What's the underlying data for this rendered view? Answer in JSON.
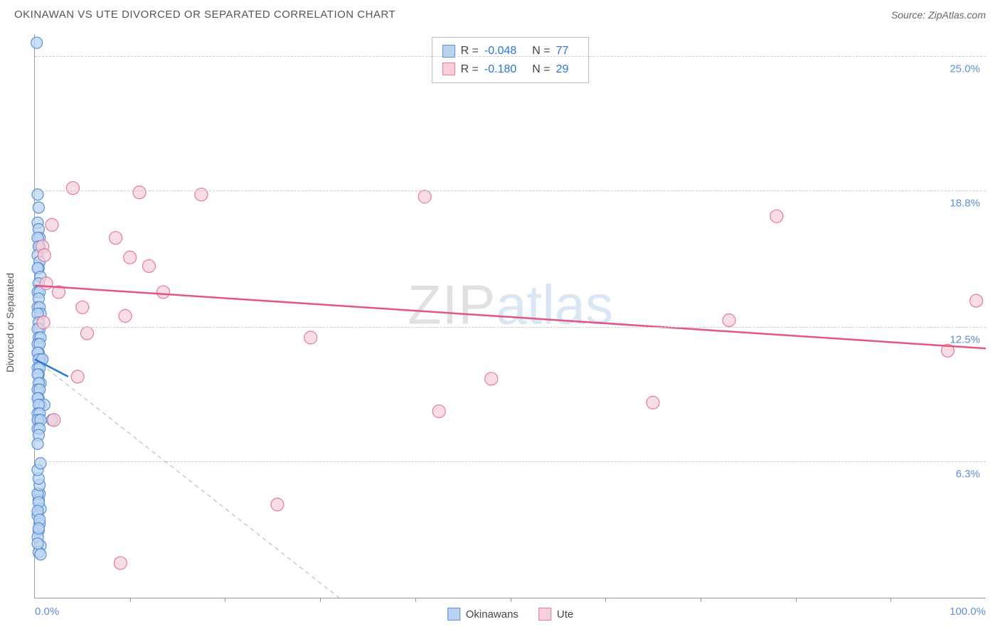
{
  "title": "OKINAWAN VS UTE DIVORCED OR SEPARATED CORRELATION CHART",
  "source": "Source: ZipAtlas.com",
  "ylabel": "Divorced or Separated",
  "watermark": {
    "part1": "ZIP",
    "part2": "atlas"
  },
  "chart": {
    "type": "scatter",
    "xmin": 0,
    "xmax": 100,
    "ymin": 0,
    "ymax": 26,
    "background_color": "#ffffff",
    "grid_color": "#cccccc",
    "grid_dash": "4,4",
    "yticks": [
      {
        "v": 6.3,
        "label": "6.3%"
      },
      {
        "v": 12.5,
        "label": "12.5%"
      },
      {
        "v": 18.8,
        "label": "18.8%"
      },
      {
        "v": 25.0,
        "label": "25.0%"
      }
    ],
    "xticks_minor": [
      10,
      20,
      30,
      40,
      50,
      60,
      70,
      80,
      90
    ],
    "xlabels": [
      {
        "v": 0,
        "label": "0.0%",
        "align": "left"
      },
      {
        "v": 100,
        "label": "100.0%",
        "align": "right"
      }
    ],
    "series": [
      {
        "name": "Okinawans",
        "fill": "#b9d4f1",
        "stroke": "#5b8fd6",
        "marker_radius": 8,
        "marker_opacity": 0.75,
        "R": "-0.048",
        "N": "77",
        "regression": {
          "x1": 0,
          "y1": 11.0,
          "x2": 3.5,
          "y2": 10.2,
          "width": 2.5,
          "color": "#2b74d8"
        },
        "guideline": {
          "x1": 0,
          "y1": 11.0,
          "x2": 32,
          "y2": 0,
          "dash": "6,5",
          "width": 1,
          "color": "#9ab8de"
        },
        "points": [
          [
            0.2,
            25.6
          ],
          [
            0.3,
            18.6
          ],
          [
            0.4,
            18.0
          ],
          [
            0.3,
            17.3
          ],
          [
            0.4,
            17.0
          ],
          [
            0.5,
            16.6
          ],
          [
            0.3,
            16.6
          ],
          [
            0.5,
            16.2
          ],
          [
            0.4,
            16.2
          ],
          [
            0.3,
            15.8
          ],
          [
            0.5,
            15.5
          ],
          [
            0.4,
            15.2
          ],
          [
            0.3,
            15.2
          ],
          [
            0.6,
            14.8
          ],
          [
            0.4,
            14.5
          ],
          [
            0.3,
            14.1
          ],
          [
            0.5,
            14.1
          ],
          [
            0.4,
            13.8
          ],
          [
            0.3,
            13.4
          ],
          [
            0.5,
            13.4
          ],
          [
            0.6,
            13.1
          ],
          [
            0.3,
            13.1
          ],
          [
            0.4,
            12.7
          ],
          [
            0.5,
            12.4
          ],
          [
            0.3,
            12.4
          ],
          [
            0.4,
            12.0
          ],
          [
            0.6,
            12.0
          ],
          [
            0.3,
            11.7
          ],
          [
            0.5,
            11.7
          ],
          [
            0.4,
            11.3
          ],
          [
            0.3,
            11.3
          ],
          [
            0.6,
            11.0
          ],
          [
            0.4,
            11.0
          ],
          [
            0.8,
            11.0
          ],
          [
            0.3,
            10.6
          ],
          [
            0.5,
            10.6
          ],
          [
            0.4,
            10.3
          ],
          [
            0.3,
            10.3
          ],
          [
            0.6,
            9.9
          ],
          [
            0.4,
            9.9
          ],
          [
            0.3,
            9.6
          ],
          [
            0.5,
            9.6
          ],
          [
            0.4,
            9.2
          ],
          [
            0.3,
            9.2
          ],
          [
            0.6,
            8.9
          ],
          [
            1.0,
            8.9
          ],
          [
            0.4,
            8.9
          ],
          [
            0.3,
            8.5
          ],
          [
            0.5,
            8.5
          ],
          [
            0.4,
            8.2
          ],
          [
            0.3,
            8.2
          ],
          [
            1.8,
            8.2
          ],
          [
            0.6,
            8.2
          ],
          [
            0.3,
            7.8
          ],
          [
            0.5,
            7.8
          ],
          [
            0.4,
            7.5
          ],
          [
            0.3,
            7.1
          ],
          [
            0.5,
            4.8
          ],
          [
            0.4,
            4.5
          ],
          [
            0.6,
            4.1
          ],
          [
            0.3,
            3.8
          ],
          [
            0.5,
            3.4
          ],
          [
            0.4,
            3.1
          ],
          [
            0.3,
            2.8
          ],
          [
            0.6,
            2.4
          ],
          [
            0.4,
            2.1
          ],
          [
            0.3,
            4.8
          ],
          [
            0.5,
            5.2
          ],
          [
            0.4,
            5.5
          ],
          [
            0.3,
            5.9
          ],
          [
            0.6,
            6.2
          ],
          [
            0.4,
            4.4
          ],
          [
            0.3,
            4.0
          ],
          [
            0.5,
            3.6
          ],
          [
            0.4,
            3.2
          ],
          [
            0.3,
            2.5
          ],
          [
            0.6,
            2.0
          ]
        ]
      },
      {
        "name": "Ute",
        "fill": "#f7d0da",
        "stroke": "#e67a9b",
        "marker_radius": 9,
        "marker_opacity": 0.72,
        "R": "-0.180",
        "N": "29",
        "regression": {
          "x1": 0,
          "y1": 14.4,
          "x2": 100,
          "y2": 11.5,
          "width": 2.5,
          "color": "#e35583"
        },
        "points": [
          [
            4.0,
            18.9
          ],
          [
            11.0,
            18.7
          ],
          [
            17.5,
            18.6
          ],
          [
            41.0,
            18.5
          ],
          [
            78.0,
            17.6
          ],
          [
            1.8,
            17.2
          ],
          [
            8.5,
            16.6
          ],
          [
            0.8,
            16.2
          ],
          [
            10.0,
            15.7
          ],
          [
            12.0,
            15.3
          ],
          [
            13.5,
            14.1
          ],
          [
            2.5,
            14.1
          ],
          [
            5.0,
            13.4
          ],
          [
            9.5,
            13.0
          ],
          [
            0.9,
            12.7
          ],
          [
            99.0,
            13.7
          ],
          [
            73.0,
            12.8
          ],
          [
            96.0,
            11.4
          ],
          [
            5.5,
            12.2
          ],
          [
            29.0,
            12.0
          ],
          [
            4.5,
            10.2
          ],
          [
            48.0,
            10.1
          ],
          [
            65.0,
            9.0
          ],
          [
            42.5,
            8.6
          ],
          [
            2.0,
            8.2
          ],
          [
            25.5,
            4.3
          ],
          [
            9.0,
            1.6
          ],
          [
            1.0,
            15.8
          ],
          [
            1.2,
            14.5
          ]
        ]
      }
    ]
  },
  "stats_labels": {
    "R": "R =",
    "N": "N ="
  }
}
